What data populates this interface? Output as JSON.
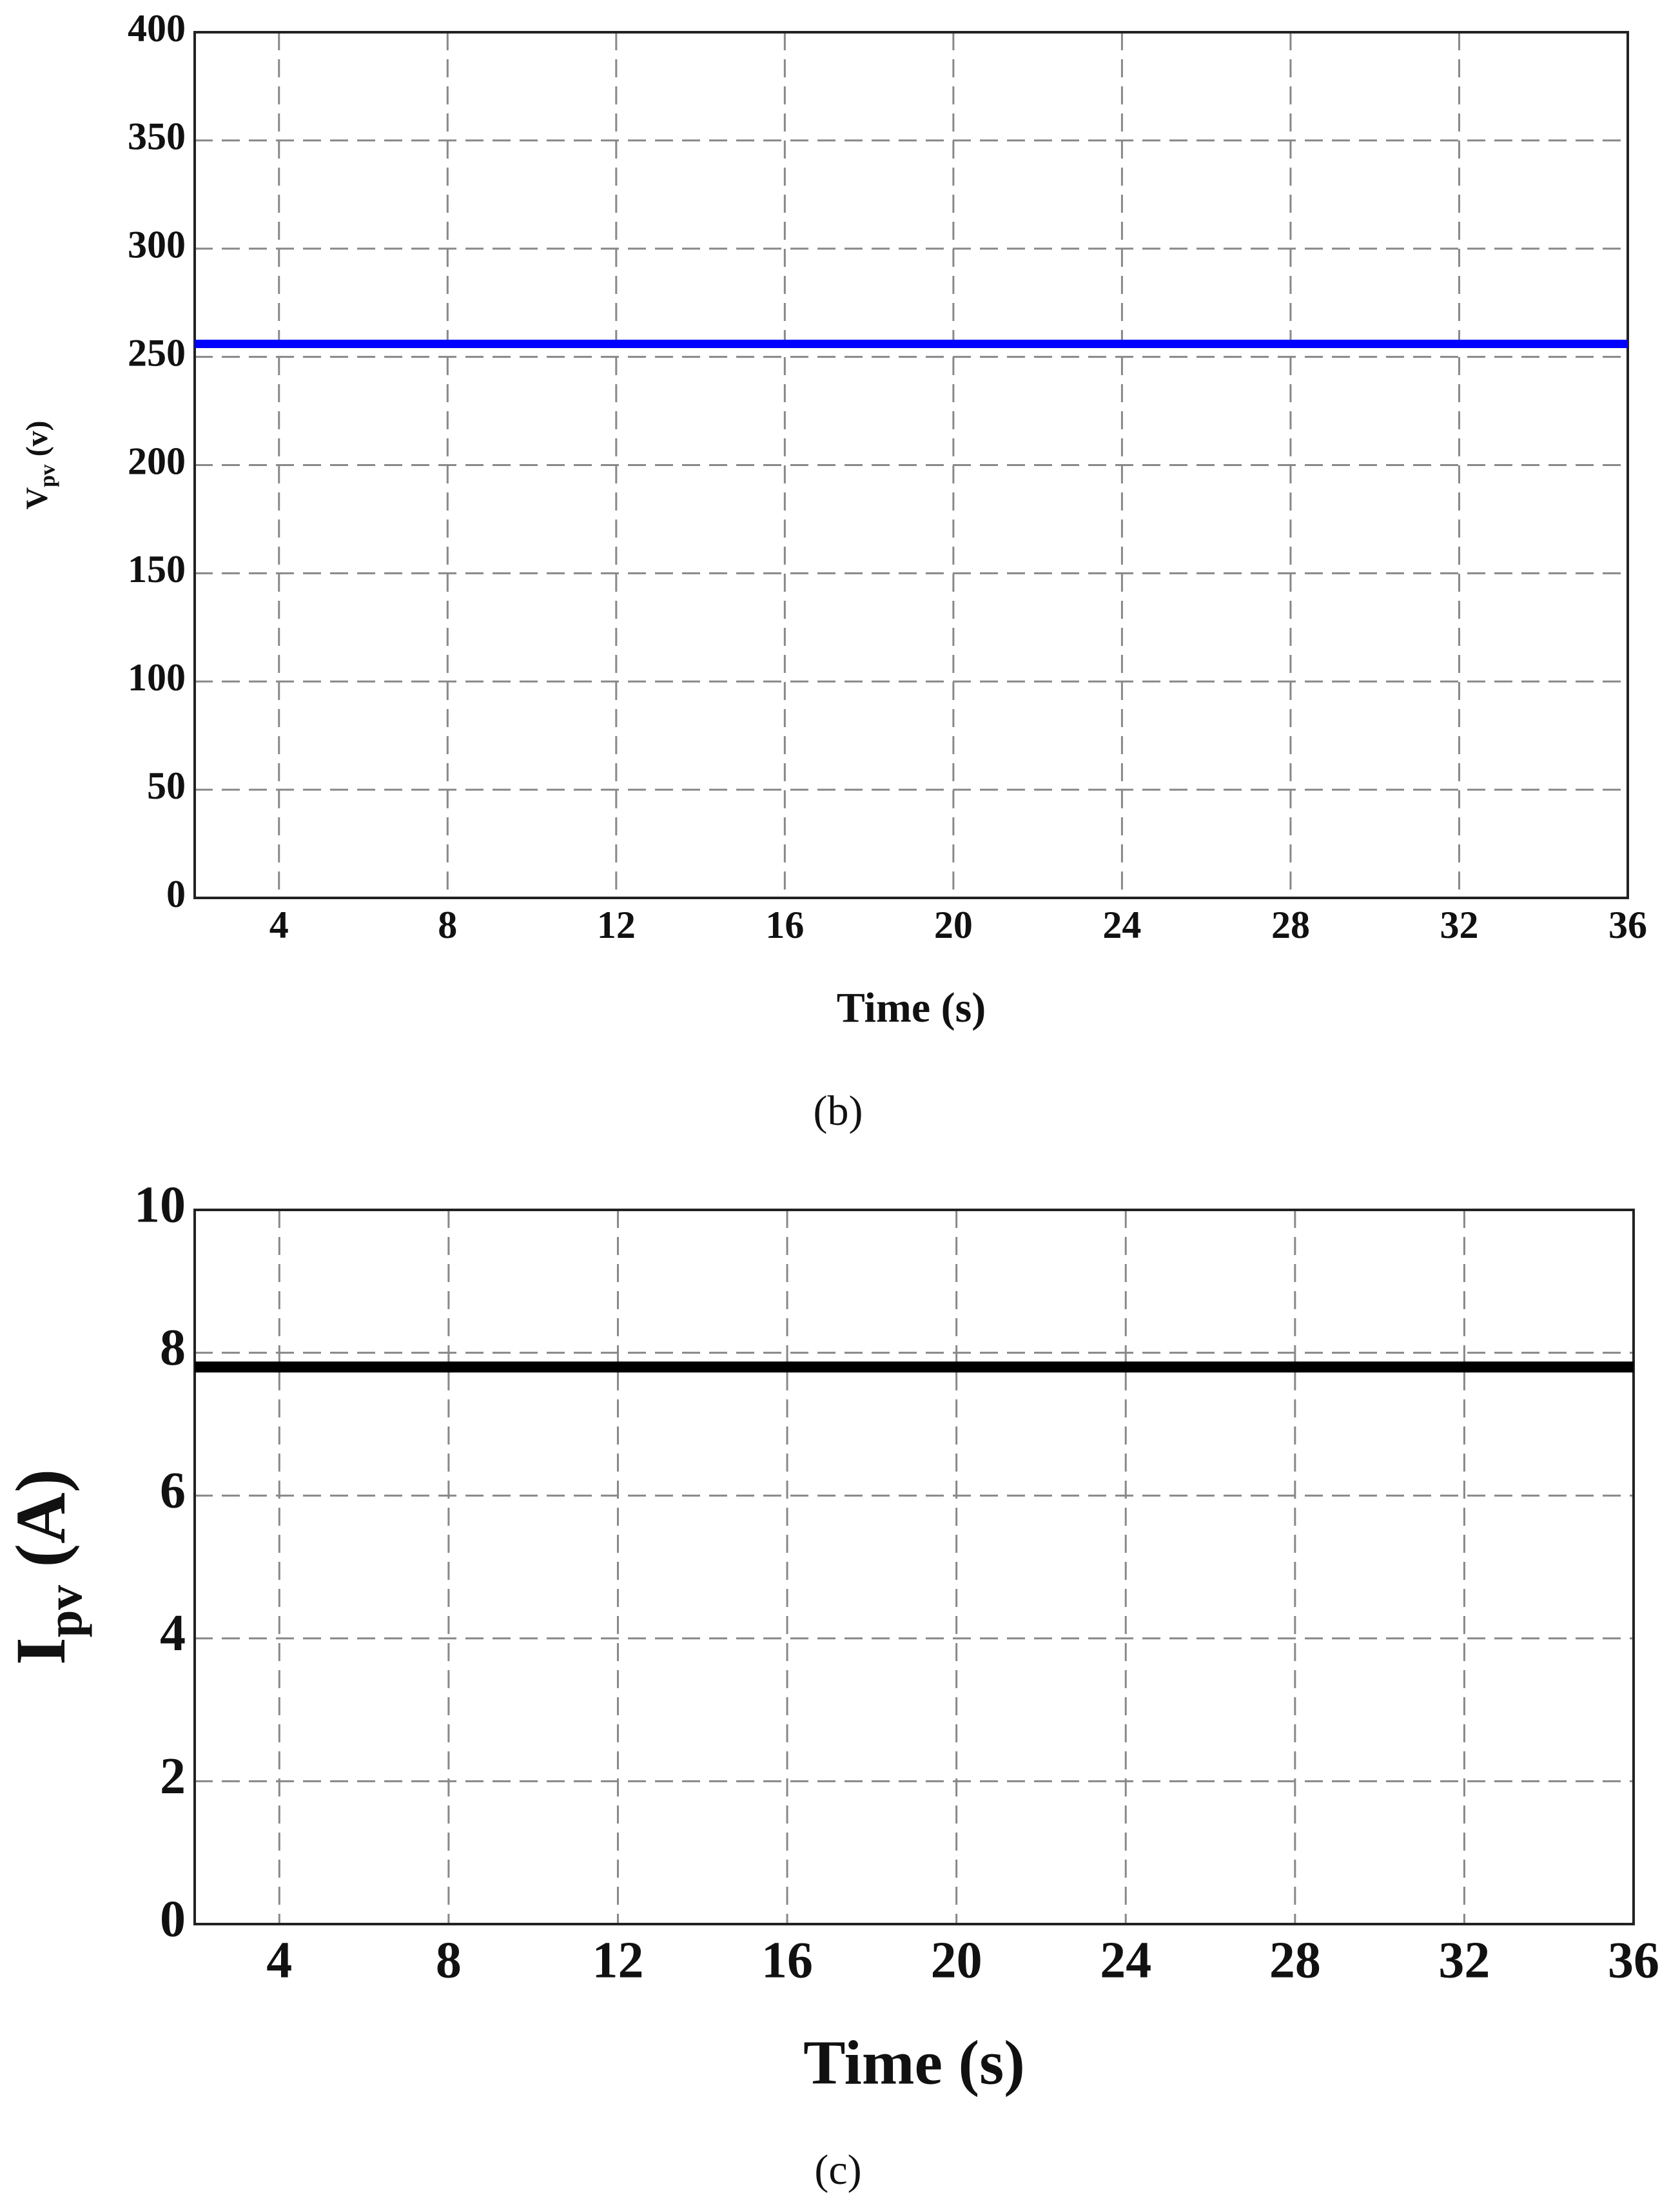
{
  "chart_data": [
    {
      "type": "line",
      "caption": "(b)",
      "xlabel": "Time (s)",
      "ylabel": [
        "V",
        "pv",
        "(v)"
      ],
      "x": [
        2,
        36
      ],
      "series": [
        {
          "color": "#0000ff",
          "values": [
            256,
            256
          ]
        }
      ],
      "xlim": [
        2,
        36
      ],
      "xticks": [
        4,
        8,
        12,
        16,
        20,
        24,
        28,
        32,
        36
      ],
      "ylim": [
        0,
        400
      ],
      "yticks": [
        0,
        50,
        100,
        150,
        200,
        250,
        300,
        350,
        400
      ],
      "grid": true
    },
    {
      "type": "line",
      "caption": "(c)",
      "xlabel": "Time (s)",
      "ylabel": [
        "I",
        "pv",
        "(A)"
      ],
      "x": [
        2,
        36
      ],
      "series": [
        {
          "color": "#000000",
          "values": [
            7.8,
            7.8
          ]
        }
      ],
      "xlim": [
        2,
        36
      ],
      "xticks": [
        4,
        8,
        12,
        16,
        20,
        24,
        28,
        32,
        36
      ],
      "ylim": [
        0,
        10
      ],
      "yticks": [
        0,
        2,
        4,
        6,
        8,
        10
      ],
      "grid": true
    }
  ]
}
